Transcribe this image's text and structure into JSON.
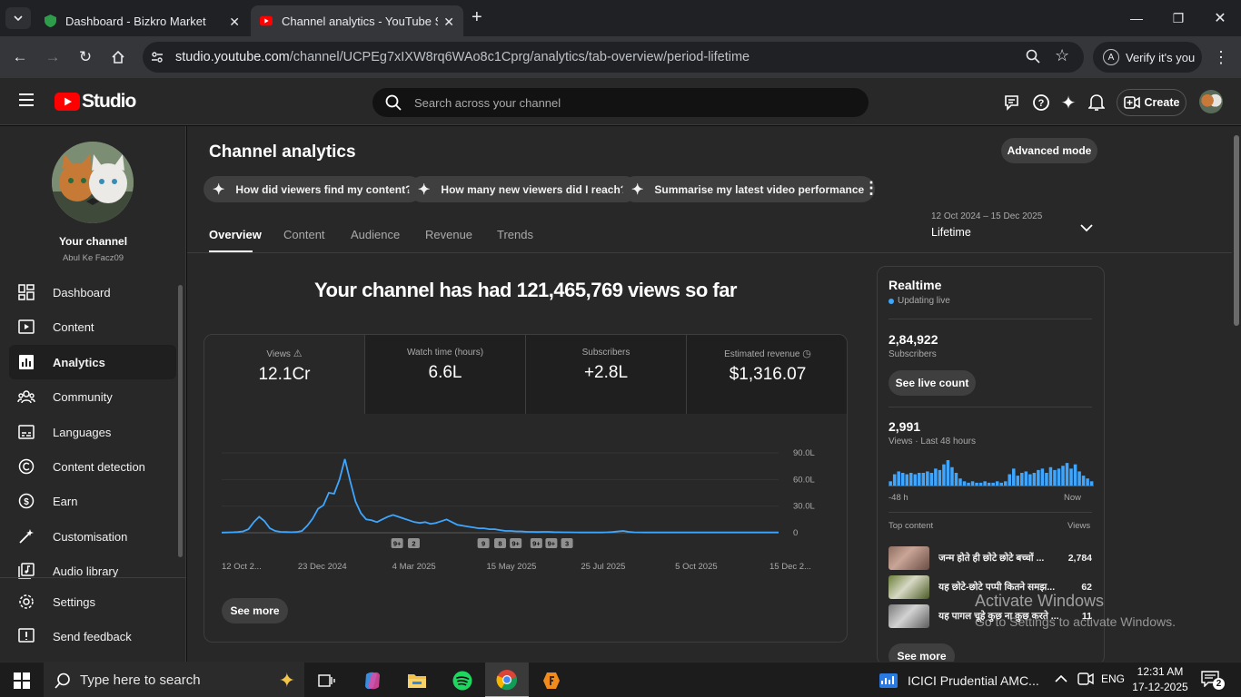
{
  "browser": {
    "tabs": [
      {
        "title": "Dashboard - Bizkro Market"
      },
      {
        "title": "Channel analytics - YouTube Studio"
      }
    ],
    "url_host": "studio.youtube.com",
    "url_path": "/channel/UCPEg7xIXW8rq6WAo8c1Cprg/analytics/tab-overview/period-lifetime",
    "verify": "Verify it's you",
    "verify_avatar": "A"
  },
  "header": {
    "logo_text": "Studio",
    "search_placeholder": "Search across your channel",
    "create_label": "Create"
  },
  "sidebar": {
    "channel_title": "Your channel",
    "channel_name": "Abul Ke Facz09",
    "items": [
      {
        "label": "Dashboard",
        "icon": "dashboard-icon"
      },
      {
        "label": "Content",
        "icon": "content-icon"
      },
      {
        "label": "Analytics",
        "icon": "analytics-icon"
      },
      {
        "label": "Community",
        "icon": "community-icon"
      },
      {
        "label": "Languages",
        "icon": "languages-icon"
      },
      {
        "label": "Content detection",
        "icon": "content-detection-icon"
      },
      {
        "label": "Earn",
        "icon": "earn-icon"
      },
      {
        "label": "Customisation",
        "icon": "customisation-icon"
      },
      {
        "label": "Audio library",
        "icon": "audio-library-icon"
      }
    ],
    "settings": "Settings",
    "feedback": "Send feedback"
  },
  "main": {
    "title": "Channel analytics",
    "advanced_mode": "Advanced mode",
    "suggestions": [
      "How did viewers find my content?",
      "How many new viewers did I reach?",
      "Summarise my latest video performance"
    ],
    "tabs": [
      "Overview",
      "Content",
      "Audience",
      "Revenue",
      "Trends"
    ],
    "period_range": "12 Oct 2024 – 15 Dec 2025",
    "period_label": "Lifetime",
    "headline": "Your channel has had 121,465,769 views so far",
    "metrics": [
      {
        "label": "Views",
        "value": "12.1Cr"
      },
      {
        "label": "Watch time (hours)",
        "value": "6.6L"
      },
      {
        "label": "Subscribers",
        "value": "+2.8L"
      },
      {
        "label": "Estimated revenue",
        "value": "$1,316.07"
      }
    ],
    "see_more": "See more"
  },
  "chart_data": {
    "type": "line",
    "series": [
      {
        "values": [
          0.2,
          0.3,
          0.5,
          0.8,
          1.5,
          4,
          12,
          18,
          13,
          5,
          2,
          1,
          0.8,
          0.6,
          0.8,
          2,
          8,
          16,
          27,
          31,
          45,
          44,
          60,
          83,
          58,
          35,
          22,
          15,
          14,
          12,
          15,
          18,
          20,
          18,
          16,
          14,
          12,
          11,
          12,
          10,
          11,
          13,
          15,
          12,
          9,
          8,
          7,
          6,
          5,
          5,
          4,
          4,
          3,
          2,
          2,
          1.5,
          1.5,
          1,
          1,
          0.8,
          1,
          1,
          0.7,
          0.6,
          0.5,
          0.5,
          0.4,
          0.3,
          0.3,
          0.3,
          0.3,
          0.3,
          0.5,
          0.8,
          1.5,
          2,
          1,
          0.5,
          0.4,
          0.3,
          0.3,
          0.3,
          0.3,
          0.3,
          0.3,
          0.3,
          0.3,
          0.3,
          0.3,
          0.3,
          0.3,
          0.3,
          0.3,
          0.3,
          0.3,
          0.3,
          0.3,
          0.3,
          0.3,
          0.3,
          0.3,
          0.3,
          0.3,
          0.3,
          0.3
        ]
      }
    ],
    "yticks": [
      "90.0L",
      "60.0L",
      "30.0L",
      "0"
    ],
    "ylim": [
      0,
      90
    ],
    "xticks": [
      "12 Oct 2...",
      "23 Dec 2024",
      "4 Mar 2025",
      "15 May 2025",
      "25 Jul 2025",
      "5 Oct 2025",
      "15 Dec 2..."
    ],
    "markers": [
      "9+",
      "2",
      "9",
      "8",
      "9+",
      "9+",
      "9+",
      "3"
    ]
  },
  "realtime": {
    "title": "Realtime",
    "live": "Updating live",
    "subs_value": "2,84,922",
    "subs_label": "Subscribers",
    "live_count_btn": "See live count",
    "views_value": "2,991",
    "views_label": "Views · Last 48 hours",
    "bars": [
      3,
      8,
      10,
      9,
      8,
      9,
      8,
      9,
      9,
      10,
      9,
      12,
      11,
      15,
      18,
      13,
      9,
      5,
      3,
      2,
      3,
      2,
      2,
      3,
      2,
      2,
      3,
      2,
      3,
      8,
      12,
      7,
      9,
      10,
      8,
      9,
      11,
      12,
      9,
      13,
      11,
      12,
      14,
      16,
      12,
      15,
      10,
      7,
      5,
      3
    ],
    "axis_left": "-48 h",
    "axis_right": "Now",
    "top_content_label": "Top content",
    "views_col": "Views",
    "top": [
      {
        "title": "जन्म होते ही छोटे छोटे बच्चों ...",
        "views": "2,784"
      },
      {
        "title": "यह छोटे-छोटे पप्पी कितने समझ...",
        "views": "62"
      },
      {
        "title": "यह पागल चूहे कुछ ना कुछ करते ...",
        "views": "11"
      }
    ],
    "see_more": "See more"
  },
  "watermark": {
    "line1": "Activate Windows",
    "line2": "Go to Settings to activate Windows."
  },
  "taskbar": {
    "search": "Type here to search",
    "news": "ICICI Prudential AMC...",
    "lang": "ENG",
    "time": "12:31 AM",
    "date": "17-12-2025",
    "notif": "2"
  },
  "colors": {
    "accent": "#3ea6ff",
    "yt_red": "#ff0000",
    "chart_line": "#3ea6ff"
  }
}
